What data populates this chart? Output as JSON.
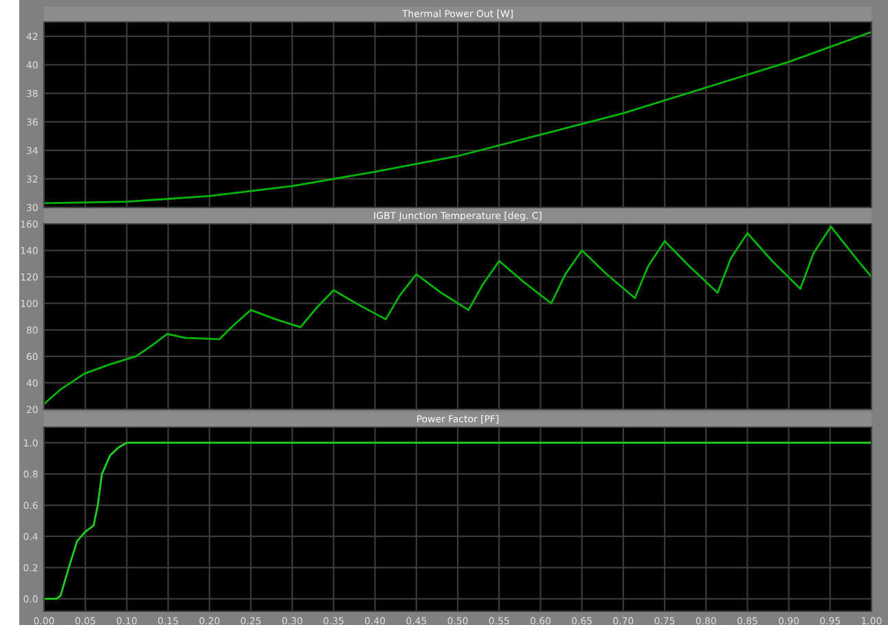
{
  "chart_data": [
    {
      "type": "line",
      "title": "Thermal Power Out [W]",
      "x": [
        0,
        0.1,
        0.2,
        0.3,
        0.4,
        0.5,
        0.6,
        0.7,
        0.8,
        0.9,
        1.0
      ],
      "series": [
        {
          "color": "#00b400",
          "values": [
            30.3,
            30.4,
            30.8,
            31.5,
            32.5,
            33.6,
            35.1,
            36.6,
            38.4,
            40.2,
            42.3
          ]
        }
      ],
      "xlim": [
        0,
        1
      ],
      "xticks": [
        0,
        0.05,
        0.1,
        0.15,
        0.2,
        0.25,
        0.3,
        0.35,
        0.4,
        0.45,
        0.5,
        0.55,
        0.6,
        0.65,
        0.7,
        0.75,
        0.8,
        0.85,
        0.9,
        0.95,
        1.0
      ],
      "ylim": [
        30,
        43
      ],
      "yticks": [
        30,
        32,
        34,
        36,
        38,
        40,
        42
      ],
      "tick_labels": "y",
      "grid": true,
      "marker": "none",
      "line_style": "solid"
    },
    {
      "type": "line",
      "title": "IGBT Junction Temperature [deg. C]",
      "x": [
        0,
        0.02,
        0.049,
        0.08,
        0.111,
        0.13,
        0.149,
        0.17,
        0.212,
        0.23,
        0.25,
        0.28,
        0.31,
        0.33,
        0.35,
        0.38,
        0.413,
        0.43,
        0.45,
        0.48,
        0.513,
        0.53,
        0.55,
        0.58,
        0.613,
        0.63,
        0.65,
        0.68,
        0.714,
        0.73,
        0.75,
        0.78,
        0.814,
        0.83,
        0.85,
        0.88,
        0.914,
        0.93,
        0.951,
        0.98,
        1.0
      ],
      "series": [
        {
          "color": "#00b400",
          "values": [
            24,
            35,
            47,
            54,
            60,
            68,
            77,
            74,
            73,
            84,
            95,
            88,
            82,
            97,
            110,
            99,
            88,
            106,
            122,
            108,
            95,
            114,
            132,
            116,
            100,
            122,
            140,
            122,
            104,
            128,
            147,
            128,
            108,
            134,
            153,
            132,
            111,
            138,
            158,
            135,
            120
          ]
        }
      ],
      "xlim": [
        0,
        1
      ],
      "xticks": [
        0,
        0.05,
        0.1,
        0.15,
        0.2,
        0.25,
        0.3,
        0.35,
        0.4,
        0.45,
        0.5,
        0.55,
        0.6,
        0.65,
        0.7,
        0.75,
        0.8,
        0.85,
        0.9,
        0.95,
        1.0
      ],
      "ylim": [
        20,
        160
      ],
      "yticks": [
        20,
        40,
        60,
        80,
        100,
        120,
        140,
        160
      ],
      "tick_labels": "y",
      "grid": true,
      "marker": "none",
      "line_style": "solid"
    },
    {
      "type": "line",
      "title": "Power Factor [PF]",
      "x": [
        0,
        0.015,
        0.02,
        0.03,
        0.04,
        0.05,
        0.06,
        0.065,
        0.07,
        0.08,
        0.09,
        0.1,
        0.15,
        0.2,
        0.3,
        0.5,
        0.7,
        1.0
      ],
      "series": [
        {
          "color": "#20d020",
          "values": [
            0,
            0,
            0.02,
            0.2,
            0.37,
            0.43,
            0.47,
            0.6,
            0.8,
            0.92,
            0.97,
            1.0,
            1.0,
            1.0,
            1.0,
            1.0,
            1.0,
            1.0
          ]
        }
      ],
      "xlim": [
        0,
        1
      ],
      "xticks": [
        {
          "value": 0,
          "label": "0.00"
        },
        {
          "value": 0.05,
          "label": "0.05"
        },
        {
          "value": 0.1,
          "label": "0.10"
        },
        {
          "value": 0.15,
          "label": "0.15"
        },
        {
          "value": 0.2,
          "label": "0.20"
        },
        {
          "value": 0.25,
          "label": "0.25"
        },
        {
          "value": 0.3,
          "label": "0.30"
        },
        {
          "value": 0.35,
          "label": "0.35"
        },
        {
          "value": 0.4,
          "label": "0.40"
        },
        {
          "value": 0.45,
          "label": "0.45"
        },
        {
          "value": 0.5,
          "label": "0.50"
        },
        {
          "value": 0.55,
          "label": "0.55"
        },
        {
          "value": 0.6,
          "label": "0.60"
        },
        {
          "value": 0.65,
          "label": "0.65"
        },
        {
          "value": 0.7,
          "label": "0.70"
        },
        {
          "value": 0.75,
          "label": "0.75"
        },
        {
          "value": 0.8,
          "label": "0.80"
        },
        {
          "value": 0.85,
          "label": "0.85"
        },
        {
          "value": 0.9,
          "label": "0.90"
        },
        {
          "value": 0.95,
          "label": "0.95"
        },
        {
          "value": 1.0,
          "label": "1.00"
        }
      ],
      "ylim": [
        -0.08,
        1.1
      ],
      "yticks": [
        {
          "value": 0,
          "label": "0.0"
        },
        {
          "value": 0.2,
          "label": "0.2"
        },
        {
          "value": 0.4,
          "label": "0.4"
        },
        {
          "value": 0.6,
          "label": "0.6"
        },
        {
          "value": 0.8,
          "label": "0.8"
        },
        {
          "value": 1.0,
          "label": "1.0"
        }
      ],
      "grid": true,
      "marker": "none",
      "line_style": "solid"
    }
  ]
}
